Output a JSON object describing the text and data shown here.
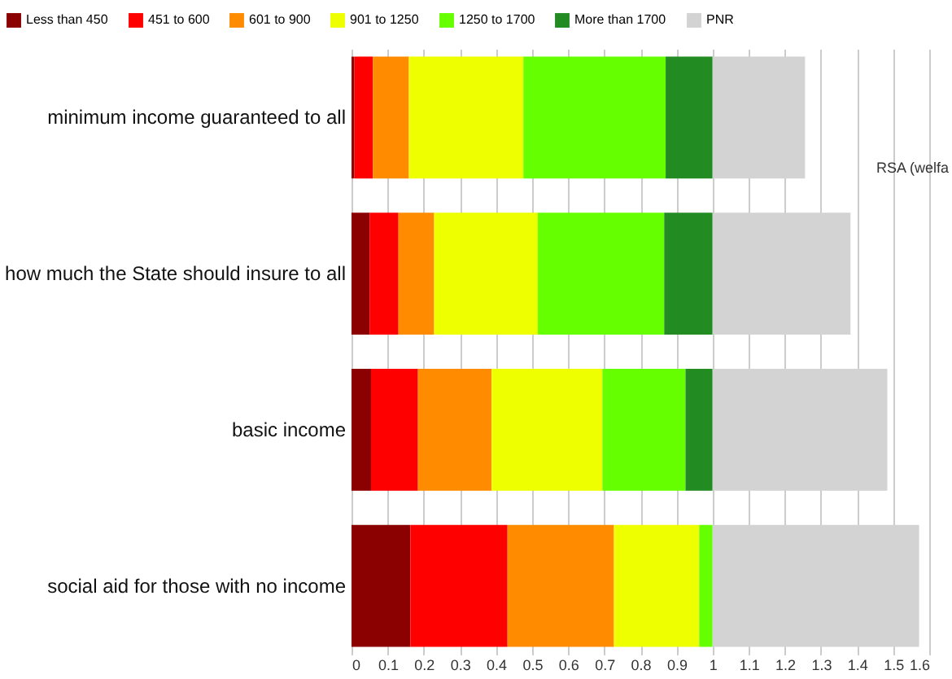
{
  "chart_data": {
    "type": "bar",
    "orientation": "horizontal",
    "stacked": true,
    "categories": [
      "minimum income guaranteed to all",
      "how much the State should insure to all",
      "basic income",
      "social aid for those with no income"
    ],
    "series": [
      {
        "name": "Less than 450",
        "color": "#8b0000",
        "values": [
          0.008,
          0.05,
          0.054,
          0.163
        ]
      },
      {
        "name": "451 to 600",
        "color": "#ff0000",
        "values": [
          0.051,
          0.08,
          0.13,
          0.269
        ]
      },
      {
        "name": "601 to 900",
        "color": "#ff8c00",
        "values": [
          0.1,
          0.099,
          0.204,
          0.295
        ]
      },
      {
        "name": "901 to 1250",
        "color": "#eeff00",
        "values": [
          0.317,
          0.287,
          0.307,
          0.236
        ]
      },
      {
        "name": "1250 to 1700",
        "color": "#66ff00",
        "values": [
          0.394,
          0.35,
          0.23,
          0.037
        ]
      },
      {
        "name": "More than 1700",
        "color": "#228b22",
        "values": [
          0.13,
          0.134,
          0.075,
          0
        ]
      },
      {
        "name": "PNR",
        "color": "#d3d3d3",
        "values": [
          0.256,
          0.382,
          0.484,
          0.572
        ]
      }
    ],
    "xlim": [
      0,
      1.6
    ],
    "xticks": [
      0,
      0.1,
      0.2,
      0.3,
      0.4,
      0.5,
      0.6,
      0.7,
      0.8,
      0.9,
      1,
      1.1,
      1.2,
      1.3,
      1.4,
      1.5,
      1.6
    ],
    "grid": "x",
    "legend": "top",
    "annotations": [
      "RSA (welfa"
    ]
  }
}
